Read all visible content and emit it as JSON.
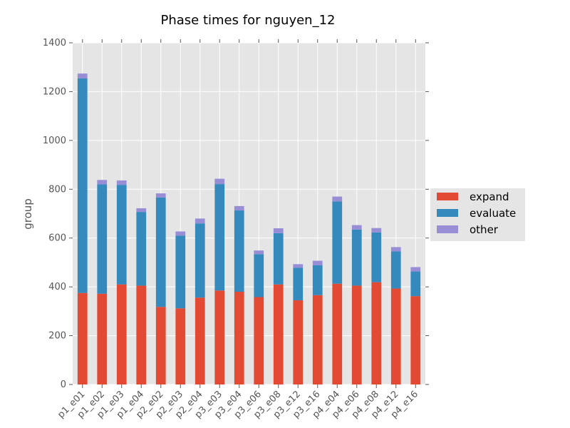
{
  "chart_data": {
    "type": "bar",
    "stacked": true,
    "title": "Phase times for nguyen_12",
    "xlabel": "",
    "ylabel": "group",
    "ylim": [
      0,
      1400
    ],
    "yticks": [
      0,
      200,
      400,
      600,
      800,
      1000,
      1200,
      1400
    ],
    "grid": true,
    "legend_position": "right",
    "categories": [
      "p1_e01",
      "p1_e02",
      "p1_e03",
      "p1_e04",
      "p2_e02",
      "p2_e03",
      "p2_e04",
      "p3_e03",
      "p3_e04",
      "p3_e06",
      "p3_e08",
      "p3_e12",
      "p3_e16",
      "p4_e04",
      "p4_e06",
      "p4_e08",
      "p4_e12",
      "p4_e16"
    ],
    "series": [
      {
        "name": "expand",
        "color": "#E24A33",
        "values": [
          375,
          372,
          410,
          405,
          318,
          312,
          356,
          385,
          380,
          358,
          410,
          345,
          366,
          413,
          405,
          419,
          393,
          362
        ]
      },
      {
        "name": "evaluate",
        "color": "#348ABD",
        "values": [
          879,
          448,
          408,
          302,
          448,
          298,
          304,
          436,
          333,
          176,
          210,
          133,
          123,
          337,
          230,
          204,
          152,
          101
        ]
      },
      {
        "name": "other",
        "color": "#988ED5",
        "values": [
          20,
          18,
          18,
          15,
          17,
          17,
          20,
          22,
          18,
          15,
          20,
          15,
          18,
          20,
          18,
          18,
          18,
          18
        ]
      }
    ]
  }
}
